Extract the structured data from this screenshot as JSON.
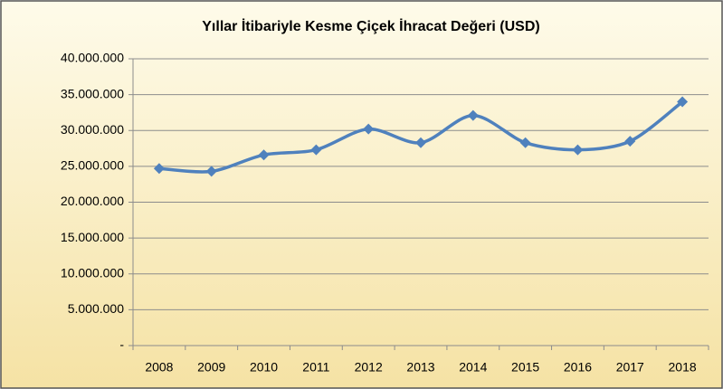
{
  "chart_data": {
    "type": "line",
    "title": "Yıllar İtibariyle Kesme Çiçek İhracat Değeri  (USD)",
    "categories": [
      "2008",
      "2009",
      "2010",
      "2011",
      "2012",
      "2013",
      "2014",
      "2015",
      "2016",
      "2017",
      "2018"
    ],
    "series": [
      {
        "name": "İhracat Değeri",
        "color": "#4f81bd",
        "values": [
          24700000,
          24300000,
          26600000,
          27300000,
          30200000,
          28300000,
          32100000,
          28300000,
          27300000,
          28500000,
          34000000
        ]
      }
    ],
    "ylim": [
      0,
      40000000
    ],
    "yticks": [
      {
        "value": 0,
        "label": "-"
      },
      {
        "value": 5000000,
        "label": "5.000.000"
      },
      {
        "value": 10000000,
        "label": "10.000.000"
      },
      {
        "value": 15000000,
        "label": "15.000.000"
      },
      {
        "value": 20000000,
        "label": "20.000.000"
      },
      {
        "value": 25000000,
        "label": "25.000.000"
      },
      {
        "value": 30000000,
        "label": "30.000.000"
      },
      {
        "value": 35000000,
        "label": "35.000.000"
      },
      {
        "value": 40000000,
        "label": "40.000.000"
      }
    ],
    "grid": true
  }
}
